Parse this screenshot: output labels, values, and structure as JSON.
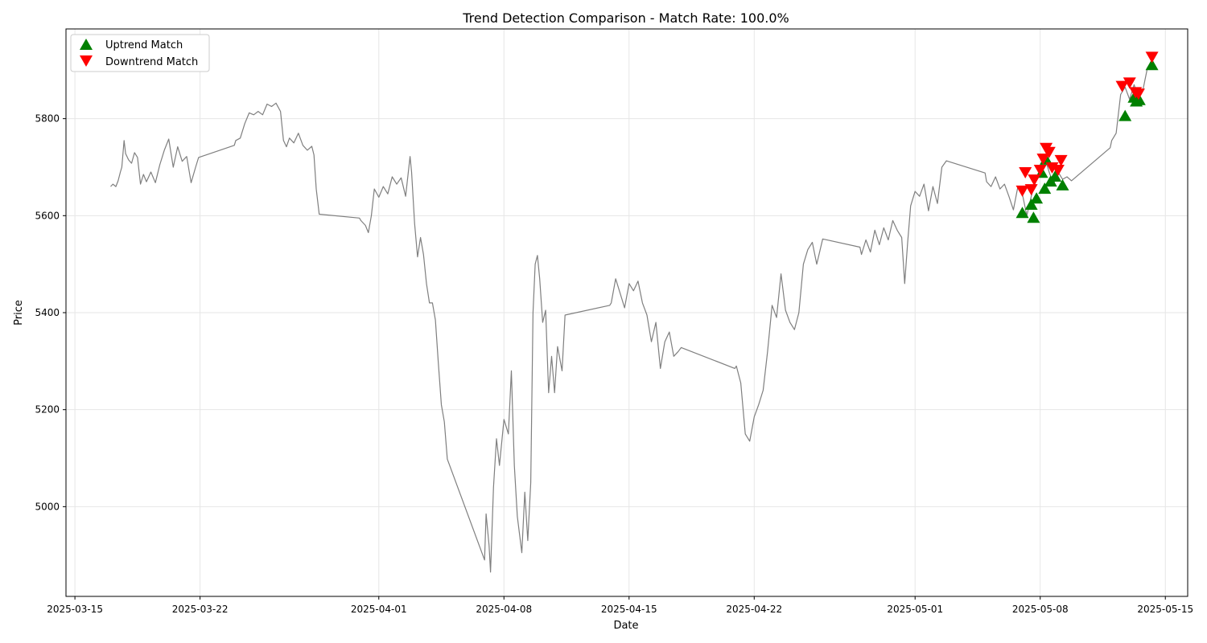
{
  "chart_data": {
    "type": "line",
    "title": "Trend Detection Comparison - Match Rate: 100.0%",
    "xlabel": "Date",
    "ylabel": "Price",
    "x_axis_kind": "date",
    "xlim": [
      "2025-03-14T12:00",
      "2025-05-16T06:00"
    ],
    "ylim": [
      4815,
      5985
    ],
    "x_ticks": [
      "2025-03-15",
      "2025-03-22",
      "2025-04-01",
      "2025-04-08",
      "2025-04-15",
      "2025-04-22",
      "2025-05-01",
      "2025-05-08",
      "2025-05-15"
    ],
    "y_ticks": [
      5000,
      5200,
      5400,
      5600,
      5800
    ],
    "grid": true,
    "legend_position": "top-left",
    "colors": {
      "price_line": "#7f7f7f",
      "uptrend": "#008000",
      "downtrend": "#ff0000",
      "grid": "#e6e6e6"
    },
    "series": [
      {
        "kind": "line",
        "points": [
          [
            "2025-03-17T00:00",
            5660
          ],
          [
            "2025-03-17T03:00",
            5665
          ],
          [
            "2025-03-17T07:00",
            5660
          ],
          [
            "2025-03-17T10:00",
            5672
          ],
          [
            "2025-03-17T13:00",
            5690
          ],
          [
            "2025-03-17T15:00",
            5700
          ],
          [
            "2025-03-17T18:00",
            5755
          ],
          [
            "2025-03-17T20:00",
            5728
          ],
          [
            "2025-03-18T00:00",
            5715
          ],
          [
            "2025-03-18T04:00",
            5708
          ],
          [
            "2025-03-18T08:00",
            5730
          ],
          [
            "2025-03-18T12:00",
            5720
          ],
          [
            "2025-03-18T16:00",
            5665
          ],
          [
            "2025-03-18T20:00",
            5685
          ],
          [
            "2025-03-19T00:00",
            5670
          ],
          [
            "2025-03-19T06:00",
            5690
          ],
          [
            "2025-03-19T12:00",
            5668
          ],
          [
            "2025-03-19T18:00",
            5705
          ],
          [
            "2025-03-20T00:00",
            5735
          ],
          [
            "2025-03-20T06:00",
            5758
          ],
          [
            "2025-03-20T12:00",
            5700
          ],
          [
            "2025-03-20T18:00",
            5742
          ],
          [
            "2025-03-21T00:00",
            5712
          ],
          [
            "2025-03-21T06:00",
            5722
          ],
          [
            "2025-03-21T12:00",
            5668
          ],
          [
            "2025-03-21T18:00",
            5700
          ],
          [
            "2025-03-21T22:00",
            5720
          ],
          [
            "2025-03-23T22:00",
            5745
          ],
          [
            "2025-03-24T00:00",
            5755
          ],
          [
            "2025-03-24T06:00",
            5760
          ],
          [
            "2025-03-24T12:00",
            5790
          ],
          [
            "2025-03-24T18:00",
            5812
          ],
          [
            "2025-03-25T00:00",
            5808
          ],
          [
            "2025-03-25T06:00",
            5815
          ],
          [
            "2025-03-25T12:00",
            5808
          ],
          [
            "2025-03-25T18:00",
            5830
          ],
          [
            "2025-03-26T00:00",
            5825
          ],
          [
            "2025-03-26T06:00",
            5832
          ],
          [
            "2025-03-26T12:00",
            5815
          ],
          [
            "2025-03-26T16:00",
            5755
          ],
          [
            "2025-03-26T20:00",
            5742
          ],
          [
            "2025-03-27T00:00",
            5760
          ],
          [
            "2025-03-27T06:00",
            5750
          ],
          [
            "2025-03-27T12:00",
            5770
          ],
          [
            "2025-03-27T18:00",
            5745
          ],
          [
            "2025-03-28T00:00",
            5735
          ],
          [
            "2025-03-28T06:00",
            5743
          ],
          [
            "2025-03-28T09:00",
            5725
          ],
          [
            "2025-03-28T12:00",
            5655
          ],
          [
            "2025-03-28T16:00",
            5603
          ],
          [
            "2025-03-30T22:00",
            5595
          ],
          [
            "2025-03-31T00:00",
            5590
          ],
          [
            "2025-03-31T06:00",
            5580
          ],
          [
            "2025-03-31T10:00",
            5565
          ],
          [
            "2025-03-31T14:00",
            5600
          ],
          [
            "2025-03-31T18:00",
            5655
          ],
          [
            "2025-04-01T00:00",
            5638
          ],
          [
            "2025-04-01T06:00",
            5660
          ],
          [
            "2025-04-01T12:00",
            5645
          ],
          [
            "2025-04-01T18:00",
            5680
          ],
          [
            "2025-04-02T00:00",
            5665
          ],
          [
            "2025-04-02T06:00",
            5678
          ],
          [
            "2025-04-02T12:00",
            5640
          ],
          [
            "2025-04-02T18:00",
            5722
          ],
          [
            "2025-04-02T20:00",
            5690
          ],
          [
            "2025-04-03T00:00",
            5585
          ],
          [
            "2025-04-03T04:00",
            5515
          ],
          [
            "2025-04-03T08:00",
            5555
          ],
          [
            "2025-04-03T12:00",
            5520
          ],
          [
            "2025-04-03T16:00",
            5460
          ],
          [
            "2025-04-03T20:00",
            5420
          ],
          [
            "2025-04-04T00:00",
            5420
          ],
          [
            "2025-04-04T04:00",
            5385
          ],
          [
            "2025-04-04T08:00",
            5295
          ],
          [
            "2025-04-04T12:00",
            5210
          ],
          [
            "2025-04-04T16:00",
            5175
          ],
          [
            "2025-04-04T20:00",
            5098
          ],
          [
            "2025-04-06T22:00",
            4890
          ],
          [
            "2025-04-07T00:00",
            4985
          ],
          [
            "2025-04-07T04:00",
            4920
          ],
          [
            "2025-04-07T06:00",
            4865
          ],
          [
            "2025-04-07T10:00",
            5040
          ],
          [
            "2025-04-07T14:00",
            5140
          ],
          [
            "2025-04-07T18:00",
            5085
          ],
          [
            "2025-04-08T00:00",
            5180
          ],
          [
            "2025-04-08T06:00",
            5150
          ],
          [
            "2025-04-08T10:00",
            5280
          ],
          [
            "2025-04-08T14:00",
            5085
          ],
          [
            "2025-04-08T18:00",
            4980
          ],
          [
            "2025-04-09T00:00",
            4905
          ],
          [
            "2025-04-09T04:00",
            5030
          ],
          [
            "2025-04-09T08:00",
            4930
          ],
          [
            "2025-04-09T12:00",
            5050
          ],
          [
            "2025-04-09T15:00",
            5400
          ],
          [
            "2025-04-09T18:00",
            5500
          ],
          [
            "2025-04-09T21:00",
            5518
          ],
          [
            "2025-04-10T00:00",
            5470
          ],
          [
            "2025-04-10T04:00",
            5380
          ],
          [
            "2025-04-10T08:00",
            5405
          ],
          [
            "2025-04-10T12:00",
            5235
          ],
          [
            "2025-04-10T16:00",
            5310
          ],
          [
            "2025-04-10T20:00",
            5235
          ],
          [
            "2025-04-11T00:00",
            5330
          ],
          [
            "2025-04-11T06:00",
            5280
          ],
          [
            "2025-04-11T10:00",
            5395
          ],
          [
            "2025-04-13T22:00",
            5415
          ],
          [
            "2025-04-14T00:00",
            5420
          ],
          [
            "2025-04-14T06:00",
            5470
          ],
          [
            "2025-04-14T12:00",
            5440
          ],
          [
            "2025-04-14T18:00",
            5410
          ],
          [
            "2025-04-15T00:00",
            5460
          ],
          [
            "2025-04-15T06:00",
            5445
          ],
          [
            "2025-04-15T12:00",
            5465
          ],
          [
            "2025-04-15T18:00",
            5420
          ],
          [
            "2025-04-16T00:00",
            5395
          ],
          [
            "2025-04-16T06:00",
            5340
          ],
          [
            "2025-04-16T12:00",
            5380
          ],
          [
            "2025-04-16T18:00",
            5285
          ],
          [
            "2025-04-17T00:00",
            5340
          ],
          [
            "2025-04-17T06:00",
            5360
          ],
          [
            "2025-04-17T12:00",
            5310
          ],
          [
            "2025-04-17T18:00",
            5320
          ],
          [
            "2025-04-17T22:00",
            5328
          ],
          [
            "2025-04-20T22:00",
            5285
          ],
          [
            "2025-04-21T00:00",
            5290
          ],
          [
            "2025-04-21T06:00",
            5255
          ],
          [
            "2025-04-21T12:00",
            5150
          ],
          [
            "2025-04-21T18:00",
            5135
          ],
          [
            "2025-04-22T00:00",
            5185
          ],
          [
            "2025-04-22T06:00",
            5210
          ],
          [
            "2025-04-22T12:00",
            5240
          ],
          [
            "2025-04-22T18:00",
            5320
          ],
          [
            "2025-04-23T00:00",
            5415
          ],
          [
            "2025-04-23T06:00",
            5390
          ],
          [
            "2025-04-23T12:00",
            5480
          ],
          [
            "2025-04-23T18:00",
            5405
          ],
          [
            "2025-04-24T00:00",
            5380
          ],
          [
            "2025-04-24T06:00",
            5365
          ],
          [
            "2025-04-24T12:00",
            5400
          ],
          [
            "2025-04-24T18:00",
            5500
          ],
          [
            "2025-04-25T00:00",
            5530
          ],
          [
            "2025-04-25T06:00",
            5545
          ],
          [
            "2025-04-25T12:00",
            5500
          ],
          [
            "2025-04-25T20:00",
            5552
          ],
          [
            "2025-04-27T22:00",
            5535
          ],
          [
            "2025-04-28T00:00",
            5520
          ],
          [
            "2025-04-28T06:00",
            5550
          ],
          [
            "2025-04-28T12:00",
            5525
          ],
          [
            "2025-04-28T18:00",
            5570
          ],
          [
            "2025-04-29T00:00",
            5540
          ],
          [
            "2025-04-29T06:00",
            5575
          ],
          [
            "2025-04-29T12:00",
            5550
          ],
          [
            "2025-04-29T18:00",
            5590
          ],
          [
            "2025-04-30T00:00",
            5570
          ],
          [
            "2025-04-30T06:00",
            5555
          ],
          [
            "2025-04-30T10:00",
            5460
          ],
          [
            "2025-04-30T14:00",
            5545
          ],
          [
            "2025-04-30T18:00",
            5620
          ],
          [
            "2025-05-01T00:00",
            5650
          ],
          [
            "2025-05-01T06:00",
            5640
          ],
          [
            "2025-05-01T12:00",
            5665
          ],
          [
            "2025-05-01T18:00",
            5610
          ],
          [
            "2025-05-02T00:00",
            5660
          ],
          [
            "2025-05-02T06:00",
            5625
          ],
          [
            "2025-05-02T12:00",
            5700
          ],
          [
            "2025-05-02T18:00",
            5713
          ],
          [
            "2025-05-04T22:00",
            5688
          ],
          [
            "2025-05-05T00:00",
            5670
          ],
          [
            "2025-05-05T06:00",
            5660
          ],
          [
            "2025-05-05T12:00",
            5680
          ],
          [
            "2025-05-05T18:00",
            5655
          ],
          [
            "2025-05-06T00:00",
            5665
          ],
          [
            "2025-05-06T06:00",
            5640
          ],
          [
            "2025-05-06T12:00",
            5612
          ],
          [
            "2025-05-06T18:00",
            5660
          ],
          [
            "2025-05-07T00:00",
            5645
          ],
          [
            "2025-05-07T06:00",
            5600
          ],
          [
            "2025-05-07T12:00",
            5640
          ],
          [
            "2025-05-07T18:00",
            5670
          ],
          [
            "2025-05-08T00:00",
            5700
          ],
          [
            "2025-05-08T06:00",
            5720
          ],
          [
            "2025-05-08T12:00",
            5690
          ],
          [
            "2025-05-08T18:00",
            5665
          ],
          [
            "2025-05-09T00:00",
            5690
          ],
          [
            "2025-05-09T06:00",
            5675
          ],
          [
            "2025-05-09T12:00",
            5680
          ],
          [
            "2025-05-09T18:00",
            5672
          ],
          [
            "2025-05-11T22:00",
            5740
          ],
          [
            "2025-05-12T00:00",
            5755
          ],
          [
            "2025-05-12T06:00",
            5770
          ],
          [
            "2025-05-12T12:00",
            5850
          ],
          [
            "2025-05-12T18:00",
            5865
          ],
          [
            "2025-05-13T00:00",
            5840
          ],
          [
            "2025-05-13T06:00",
            5870
          ],
          [
            "2025-05-13T12:00",
            5845
          ],
          [
            "2025-05-13T18:00",
            5860
          ],
          [
            "2025-05-14T00:00",
            5905
          ],
          [
            "2025-05-14T06:00",
            5915
          ]
        ]
      },
      {
        "name": "Uptrend Match",
        "kind": "marker",
        "marker": "triangle-up",
        "points": [
          [
            "2025-05-07T00:00",
            5605
          ],
          [
            "2025-05-07T12:00",
            5622
          ],
          [
            "2025-05-07T15:00",
            5595
          ],
          [
            "2025-05-07T19:00",
            5635
          ],
          [
            "2025-05-08T02:00",
            5688
          ],
          [
            "2025-05-08T06:00",
            5655
          ],
          [
            "2025-05-08T08:00",
            5715
          ],
          [
            "2025-05-08T14:00",
            5670
          ],
          [
            "2025-05-08T20:00",
            5680
          ],
          [
            "2025-05-09T06:00",
            5662
          ],
          [
            "2025-05-12T18:00",
            5805
          ],
          [
            "2025-05-13T06:00",
            5843
          ],
          [
            "2025-05-13T09:00",
            5835
          ],
          [
            "2025-05-13T13:00",
            5838
          ],
          [
            "2025-05-14T06:00",
            5910
          ]
        ]
      },
      {
        "name": "Downtrend Match",
        "kind": "marker",
        "marker": "triangle-down",
        "points": [
          [
            "2025-05-07T00:00",
            5652
          ],
          [
            "2025-05-07T04:00",
            5690
          ],
          [
            "2025-05-07T12:00",
            5655
          ],
          [
            "2025-05-07T16:00",
            5675
          ],
          [
            "2025-05-08T00:00",
            5695
          ],
          [
            "2025-05-08T04:00",
            5718
          ],
          [
            "2025-05-08T08:00",
            5740
          ],
          [
            "2025-05-08T12:00",
            5732
          ],
          [
            "2025-05-08T16:00",
            5700
          ],
          [
            "2025-05-09T00:00",
            5695
          ],
          [
            "2025-05-09T04:00",
            5715
          ],
          [
            "2025-05-12T14:00",
            5868
          ],
          [
            "2025-05-13T00:00",
            5875
          ],
          [
            "2025-05-13T08:00",
            5855
          ],
          [
            "2025-05-13T12:00",
            5852
          ],
          [
            "2025-05-14T06:00",
            5928
          ]
        ]
      }
    ]
  }
}
